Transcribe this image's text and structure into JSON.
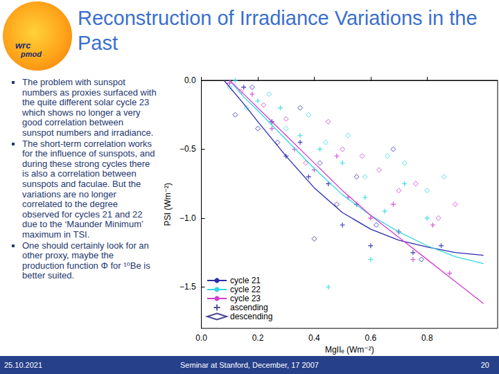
{
  "slide": {
    "title": "Reconstruction of Irradiance Variations in the Past",
    "logo": [
      "wrc",
      "pmod"
    ],
    "bullets": [
      "The  problem with sunspot numbers as proxies surfaced with the quite different solar cycle 23 which shows no longer a very good correlation between sunspot numbers and irradiance.",
      "The short-term correlation works for the influence of sunspots, and during these strong cycles there is also a correlation between sunspots and faculae. But the variations are no longer correlated to the degree observed for cycles 21 and 22 due to the ‘Maunder Minimum’ maximum in TSI.",
      "One should certainly look for an other proxy, maybe the production function Φ for ¹⁰Be is better suited."
    ],
    "footer": {
      "date": "25.10.2021",
      "event": "Seminar at Stanford, December, 17 2007",
      "page": "20"
    }
  },
  "chart_data": {
    "type": "scatter",
    "x_label": "MgIIₑ (Wm⁻²)",
    "y_label": "PSI (Wm⁻²)",
    "xlim": [
      0,
      1.05
    ],
    "xticks": [
      {
        "value": 0,
        "label": "0.0"
      },
      {
        "value": 0.2,
        "label": "0.2"
      },
      {
        "value": 0.4,
        "label": "0.4"
      },
      {
        "value": 0.6,
        "label": "0.6"
      },
      {
        "value": 0.8,
        "label": "0.8"
      }
    ],
    "ylim": [
      -1.8,
      0
    ],
    "yticks": [
      {
        "value": 0,
        "label": "0.0"
      },
      {
        "value": -0.5,
        "label": "−0.5"
      },
      {
        "value": -1,
        "label": "−1.0"
      },
      {
        "value": -1.5,
        "label": "−1.5"
      }
    ],
    "grid": false,
    "legend": "lower left",
    "series": [
      {
        "name": "cycle 21",
        "type": "line",
        "line_style": "solid",
        "color": "#2b2bb0",
        "x": [
          0.08,
          0.15,
          0.2,
          0.3,
          0.4,
          0.5,
          0.6,
          0.7,
          0.8,
          0.9,
          1.0
        ],
        "values": [
          0.0,
          -0.17,
          -0.3,
          -0.55,
          -0.78,
          -0.96,
          -1.08,
          -1.16,
          -1.21,
          -1.25,
          -1.27
        ]
      },
      {
        "name": "cycle 22",
        "type": "line",
        "line_style": "solid",
        "color": "#30d8e0",
        "x": [
          0.1,
          0.15,
          0.2,
          0.3,
          0.4,
          0.5,
          0.6,
          0.7,
          0.8,
          0.9,
          1.0
        ],
        "values": [
          0.0,
          -0.12,
          -0.22,
          -0.43,
          -0.64,
          -0.83,
          -0.98,
          -1.1,
          -1.2,
          -1.28,
          -1.33
        ]
      },
      {
        "name": "cycle 23",
        "type": "line",
        "line_style": "solid",
        "color": "#d23cd2",
        "x": [
          0.1,
          0.15,
          0.2,
          0.3,
          0.4,
          0.5,
          0.6,
          0.7,
          0.8,
          0.9,
          1.0
        ],
        "values": [
          0.0,
          -0.1,
          -0.2,
          -0.4,
          -0.6,
          -0.8,
          -0.98,
          -1.14,
          -1.3,
          -1.46,
          -1.62
        ]
      },
      {
        "name": "ascending",
        "type": "scatter",
        "marker": "plus",
        "color": "#1b1b7a",
        "x": [
          0.15,
          0.25,
          0.3,
          0.38,
          0.45,
          0.5,
          0.55,
          0.6,
          0.7,
          0.75,
          0.85,
          0.35,
          0.12,
          0.2,
          0.28,
          0.35,
          0.42,
          0.5,
          0.58,
          0.65,
          0.72,
          0.6,
          0.45,
          0.8,
          0.1,
          0.18,
          0.25,
          0.33,
          0.4,
          0.48,
          0.52,
          0.6,
          0.68,
          0.75,
          0.82,
          0.88
        ],
        "values": [
          -0.05,
          -0.3,
          -0.55,
          -0.7,
          -0.75,
          -1.05,
          -0.9,
          -1.2,
          -1.1,
          -1.25,
          -1.2,
          -0.45,
          0.0,
          -0.15,
          -0.2,
          -0.4,
          -0.5,
          -0.6,
          -0.85,
          -0.95,
          -0.75,
          -1.3,
          -1.5,
          -1.0,
          -0.02,
          -0.1,
          -0.35,
          -0.5,
          -0.65,
          -0.55,
          -0.85,
          -1.0,
          -0.9,
          -1.3,
          -1.05,
          -1.4
        ],
        "colors": [
          "#2b2bb0",
          "#2b2bb0",
          "#2b2bb0",
          "#2b2bb0",
          "#2b2bb0",
          "#2b2bb0",
          "#2b2bb0",
          "#2b2bb0",
          "#2b2bb0",
          "#2b2bb0",
          "#2b2bb0",
          "#2b2bb0",
          "#30d8e0",
          "#30d8e0",
          "#30d8e0",
          "#30d8e0",
          "#30d8e0",
          "#30d8e0",
          "#30d8e0",
          "#30d8e0",
          "#30d8e0",
          "#30d8e0",
          "#30d8e0",
          "#30d8e0",
          "#d23cd2",
          "#d23cd2",
          "#d23cd2",
          "#d23cd2",
          "#d23cd2",
          "#d23cd2",
          "#d23cd2",
          "#d23cd2",
          "#d23cd2",
          "#d23cd2",
          "#d23cd2",
          "#d23cd2"
        ]
      },
      {
        "name": "descending",
        "type": "scatter",
        "marker": "diamond",
        "color": "#1b1b7a",
        "x": [
          0.18,
          0.2,
          0.12,
          0.27,
          0.35,
          0.42,
          0.48,
          0.55,
          0.62,
          0.68,
          0.4,
          0.78,
          0.1,
          0.16,
          0.24,
          0.3,
          0.38,
          0.44,
          0.52,
          0.58,
          0.66,
          0.72,
          0.8,
          0.86,
          0.14,
          0.22,
          0.3,
          0.37,
          0.45,
          0.5,
          0.57,
          0.63,
          0.7,
          0.76,
          0.84,
          0.9
        ],
        "values": [
          -0.05,
          -0.35,
          -0.25,
          -0.45,
          -0.2,
          -0.6,
          -0.9,
          -0.7,
          -1.05,
          -0.5,
          -1.15,
          -1.3,
          -0.05,
          -0.2,
          -0.1,
          -0.35,
          -0.25,
          -0.45,
          -0.4,
          -0.7,
          -0.55,
          -0.6,
          -0.8,
          -0.7,
          -0.08,
          -0.18,
          -0.28,
          -0.6,
          -0.3,
          -0.5,
          -0.55,
          -0.65,
          -0.8,
          -0.75,
          -1.0,
          -0.9
        ],
        "colors": [
          "#2b2bb0",
          "#2b2bb0",
          "#2b2bb0",
          "#2b2bb0",
          "#2b2bb0",
          "#2b2bb0",
          "#2b2bb0",
          "#2b2bb0",
          "#2b2bb0",
          "#2b2bb0",
          "#2b2bb0",
          "#2b2bb0",
          "#30d8e0",
          "#30d8e0",
          "#30d8e0",
          "#30d8e0",
          "#30d8e0",
          "#30d8e0",
          "#30d8e0",
          "#30d8e0",
          "#30d8e0",
          "#30d8e0",
          "#30d8e0",
          "#30d8e0",
          "#d23cd2",
          "#d23cd2",
          "#d23cd2",
          "#d23cd2",
          "#d23cd2",
          "#d23cd2",
          "#d23cd2",
          "#d23cd2",
          "#d23cd2",
          "#d23cd2",
          "#d23cd2",
          "#d23cd2"
        ]
      }
    ]
  }
}
